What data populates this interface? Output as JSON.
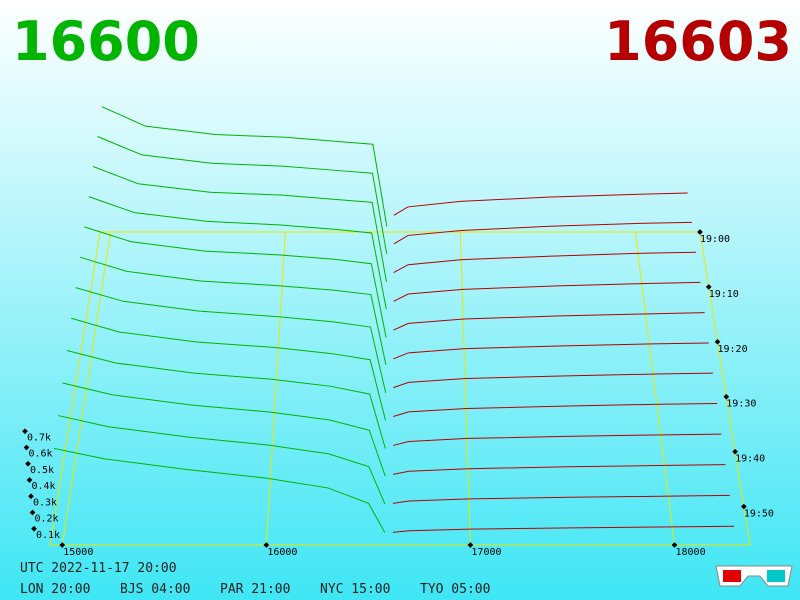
{
  "chart_data": {
    "type": "depth3d",
    "bid_price": 16600,
    "ask_price": 16603,
    "bid_color": "#00b400",
    "ask_color": "#b40000",
    "xlim": [
      14940,
      18370
    ],
    "xticks": [
      15000,
      16000,
      17000,
      18000
    ],
    "ylim": [
      0,
      800
    ],
    "yticks": [
      {
        "value": 100,
        "label": "0.1k"
      },
      {
        "value": 200,
        "label": "0.2k"
      },
      {
        "value": 300,
        "label": "0.3k"
      },
      {
        "value": 400,
        "label": "0.4k"
      },
      {
        "value": 500,
        "label": "0.5k"
      },
      {
        "value": 600,
        "label": "0.6k"
      },
      {
        "value": 700,
        "label": "0.7k"
      }
    ],
    "zlim": [
      0,
      57
    ],
    "zticks": [
      {
        "value": 0,
        "label": "19:00"
      },
      {
        "value": 10,
        "label": "19:10"
      },
      {
        "value": 20,
        "label": "19:20"
      },
      {
        "value": 30,
        "label": "19:30"
      },
      {
        "value": 40,
        "label": "19:40"
      },
      {
        "value": 50,
        "label": "19:50"
      }
    ],
    "bid_prices": [
      14950,
      15200,
      15600,
      16000,
      16300,
      16500,
      16580
    ],
    "ask_prices": [
      16620,
      16700,
      17000,
      17500,
      18000,
      18300
    ],
    "slices": [
      {
        "t": 0,
        "bid": [
          900,
          760,
          700,
          680,
          650,
          630,
          40
        ],
        "ask": [
          120,
          180,
          220,
          250,
          270,
          280
        ]
      },
      {
        "t": 5,
        "bid": [
          870,
          740,
          680,
          660,
          630,
          610,
          40
        ],
        "ask": [
          110,
          170,
          205,
          235,
          255,
          262
        ]
      },
      {
        "t": 10,
        "bid": [
          840,
          720,
          660,
          640,
          610,
          590,
          35
        ],
        "ask": [
          100,
          155,
          190,
          215,
          235,
          242
        ]
      },
      {
        "t": 15,
        "bid": [
          810,
          700,
          640,
          615,
          585,
          560,
          35
        ],
        "ask": [
          90,
          140,
          172,
          195,
          212,
          220
        ]
      },
      {
        "t": 20,
        "bid": [
          780,
          680,
          615,
          590,
          560,
          530,
          30
        ],
        "ask": [
          80,
          125,
          155,
          175,
          190,
          198
        ]
      },
      {
        "t": 25,
        "bid": [
          750,
          655,
          590,
          560,
          530,
          500,
          30
        ],
        "ask": [
          70,
          110,
          138,
          156,
          170,
          176
        ]
      },
      {
        "t": 30,
        "bid": [
          720,
          630,
          565,
          530,
          495,
          460,
          25
        ],
        "ask": [
          60,
          95,
          120,
          137,
          150,
          156
        ]
      },
      {
        "t": 35,
        "bid": [
          690,
          600,
          535,
          500,
          460,
          420,
          25
        ],
        "ask": [
          50,
          80,
          102,
          118,
          130,
          135
        ]
      },
      {
        "t": 40,
        "bid": [
          650,
          570,
          505,
          465,
          420,
          370,
          20
        ],
        "ask": [
          40,
          65,
          85,
          98,
          108,
          113
        ]
      },
      {
        "t": 45,
        "bid": [
          610,
          535,
          470,
          425,
          375,
          310,
          20
        ],
        "ask": [
          30,
          50,
          66,
          78,
          87,
          92
        ]
      },
      {
        "t": 50,
        "bid": [
          570,
          500,
          435,
          385,
          330,
          250,
          15
        ],
        "ask": [
          20,
          35,
          48,
          58,
          65,
          70
        ]
      },
      {
        "t": 55,
        "bid": [
          530,
          465,
          400,
          345,
          285,
          190,
          10
        ],
        "ask": [
          10,
          20,
          30,
          38,
          44,
          48
        ]
      }
    ],
    "timestamp": "UTC 2022-11-17 20:00",
    "zones": [
      "LON 20:00",
      "BJS 04:00",
      "PAR 21:00",
      "NYC 15:00",
      "TYO 05:00"
    ]
  }
}
